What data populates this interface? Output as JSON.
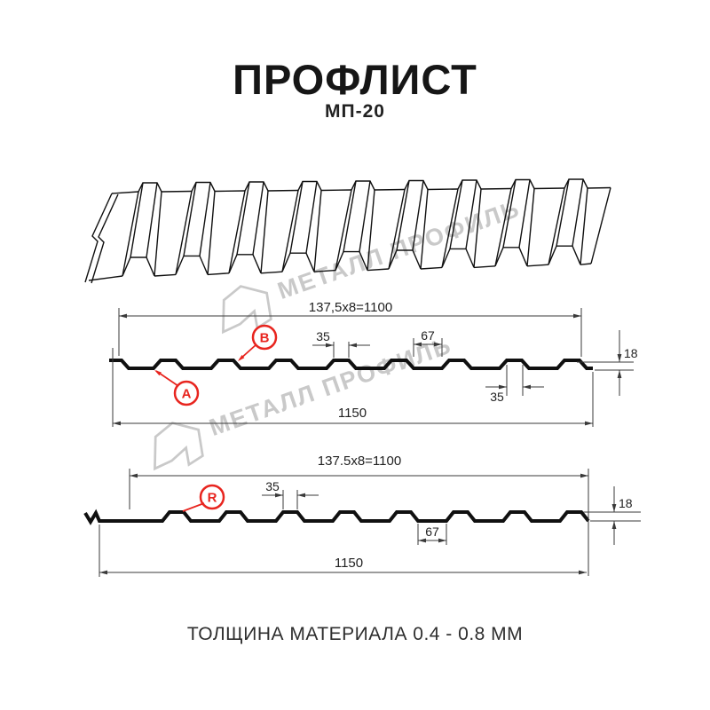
{
  "header": {
    "title": "ПРОФЛИСТ",
    "subtitle": "МП-20"
  },
  "footer": {
    "text": "ТОЛЩИНА МАТЕРИАЛА 0.4 - 0.8 ММ"
  },
  "watermark": {
    "text": "МЕТАЛЛ ПРОФИЛЬ",
    "color": "#c9c9c9"
  },
  "colors": {
    "red": "#e8251f",
    "profile_line": "#101010",
    "dim_line": "#3a3a3a",
    "dim_text": "#222222",
    "background": "#ffffff"
  },
  "diagrams": {
    "top": {
      "pitch_label": "137,5x8=1100",
      "overall_label": "1150",
      "crest_width_label": "35",
      "valley_width_label": "67",
      "height_label": "18",
      "crest_width_below_label": "35",
      "marker_a": "A",
      "marker_b": "B"
    },
    "bottom": {
      "pitch_label": "137.5x8=1100",
      "overall_label": "1150",
      "crest_width_label": "35",
      "valley_width_label": "67",
      "height_label": "18",
      "marker_r": "R"
    }
  }
}
